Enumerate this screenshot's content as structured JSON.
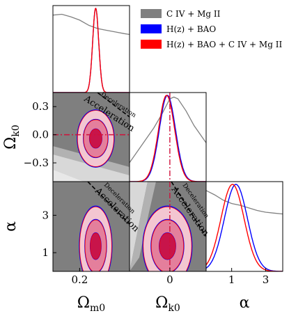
{
  "chart_data": {
    "type": "corner",
    "colors": {
      "civ_mgii": "#808080",
      "hz_bao": "#0000ff",
      "hz_bao_civ_mgii": "#ff0000",
      "panel_bg": "#7f7f7f",
      "civ_light_bands": "#b2b2b2",
      "civ_lighter_band": "#d8d8d8",
      "joint_fill_1sigma": "#c8144a",
      "joint_fill_2sigma": "#e47f9c",
      "joint_fill_3sigma": "#f3c6d1"
    },
    "legend": [
      {
        "key": "civ_mgii",
        "label": "C IV + Mg II"
      },
      {
        "key": "hz_bao",
        "label": "H(z) + BAO"
      },
      {
        "key": "hz_bao_civ_mgii",
        "label": "H(z) + BAO + C IV + Mg II"
      }
    ],
    "parameters": [
      {
        "name": "Ωm0",
        "xlabel": "Ωm0",
        "range": [
          0.05,
          0.48
        ],
        "ticks": [
          0.2
        ],
        "tick_labels": [
          "0.2"
        ]
      },
      {
        "name": "Ωk0",
        "xlabel": "Ωk0",
        "range": [
          -0.5,
          0.45
        ],
        "ticks": [
          0.0
        ],
        "tick_labels": [
          "0"
        ]
      },
      {
        "name": "α",
        "xlabel": "α",
        "range": [
          -0.5,
          4.0
        ],
        "ticks": [
          1,
          3
        ],
        "tick_labels": [
          "1",
          "3"
        ]
      }
    ],
    "y_axis": {
      "Ωk0": {
        "ylabel": "Ωk0",
        "range": [
          -0.5,
          0.45
        ],
        "ticks": [
          -0.3,
          0.0,
          0.3
        ],
        "tick_labels": [
          "−0.3",
          "0.0",
          "0.3"
        ]
      },
      "α": {
        "ylabel": "α",
        "range": [
          0.0,
          4.8
        ],
        "ticks": [
          1,
          3
        ],
        "tick_labels": [
          "1",
          "3"
        ]
      }
    },
    "reference_lines": {
      "Ωk0": 0.0
    },
    "annotations": {
      "deceleration": "Deceleration",
      "acceleration": "Acceleration"
    },
    "marginals": {
      "Ωm0": {
        "civ_mgii": {
          "x": [
            0.05,
            0.1,
            0.15,
            0.2,
            0.25,
            0.3,
            0.35,
            0.4,
            0.45,
            0.48
          ],
          "y": [
            0.92,
            0.93,
            0.9,
            0.86,
            0.8,
            0.76,
            0.74,
            0.72,
            0.7,
            0.69
          ]
        },
        "hz_bao": {
          "mean": 0.29,
          "sd": 0.017
        },
        "hz_bao_civ_mgii": {
          "mean": 0.29,
          "sd": 0.017
        }
      },
      "Ωk0": {
        "civ_mgii": {
          "x": [
            -0.5,
            -0.35,
            -0.2,
            -0.1,
            0.0,
            0.05,
            0.1,
            0.2,
            0.3,
            0.45
          ],
          "y": [
            0.22,
            0.42,
            0.62,
            0.78,
            0.96,
            0.98,
            0.96,
            0.82,
            0.65,
            0.45
          ]
        },
        "hz_bao": {
          "mean": -0.03,
          "sd": 0.1
        },
        "hz_bao_civ_mgii": {
          "mean": -0.04,
          "sd": 0.1
        }
      },
      "α": {
        "civ_mgii": {
          "x": [
            -0.5,
            0.0,
            0.5,
            1.0,
            1.5,
            2.0,
            2.5,
            3.0,
            3.5,
            4.0
          ],
          "y": [
            0.93,
            0.88,
            0.82,
            0.78,
            0.76,
            0.73,
            0.7,
            0.68,
            0.67,
            0.66
          ]
        },
        "hz_bao": {
          "mean": 1.25,
          "sd": 0.68
        },
        "hz_bao_civ_mgii": {
          "mean": 1.05,
          "sd": 0.68
        }
      }
    },
    "contours": {
      "Ωm0-Ωk0": {
        "mean": [
          0.29,
          -0.04
        ],
        "sd": [
          0.034,
          0.1
        ]
      },
      "Ωm0-α": {
        "mean": [
          0.29,
          1.35
        ],
        "sd": [
          0.03,
          0.7
        ]
      },
      "Ωk0-α": {
        "mean": [
          -0.03,
          1.35
        ],
        "sd": [
          0.1,
          0.7
        ]
      }
    }
  }
}
